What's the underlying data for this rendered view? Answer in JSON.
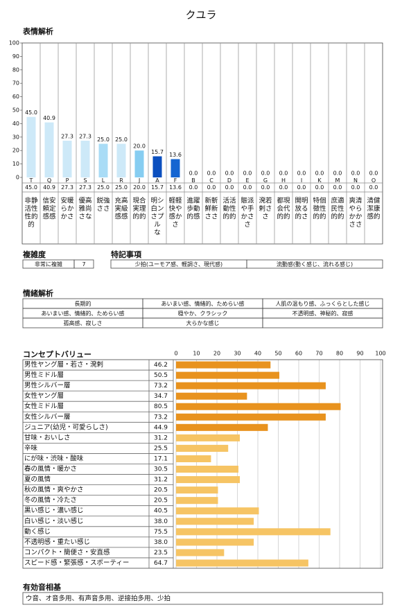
{
  "title": "クユラ",
  "chart_data": [
    {
      "type": "bar",
      "title": "表情解析",
      "categories": [
        "T",
        "Q",
        "P",
        "S",
        "L",
        "R",
        "J",
        "A",
        "F",
        "B",
        "C",
        "D",
        "E",
        "G",
        "H",
        "I",
        "K",
        "M",
        "N",
        "O"
      ],
      "category_labels": [
        [
          "非静",
          "活性",
          "性的",
          "的"
        ],
        [
          "信安",
          "頼定",
          "感感"
        ],
        [
          "安暖",
          "らか",
          "かさ"
        ],
        [
          "優高",
          "雅尚",
          "さな"
        ],
        [
          "鋭強",
          "ささ"
        ],
        [
          "充高",
          "実級",
          "感感"
        ],
        [
          "現合",
          "実理",
          "的的"
        ],
        [
          "明シ",
          "白ン",
          "さプ",
          "ル",
          "な"
        ],
        [
          "軽軽",
          "快や",
          "感か",
          "さ"
        ],
        [
          "進躍",
          "歩動",
          "的感"
        ],
        [
          "新斬",
          "鮮新",
          "ささ"
        ],
        [
          "活活",
          "動性",
          "的的"
        ],
        [
          "賑派",
          "や手",
          "かさ",
          "さ"
        ],
        [
          "溌若",
          "剌さ",
          "さ"
        ],
        [
          "都現",
          "会代",
          "的的"
        ],
        [
          "開明",
          "放る",
          "的さ"
        ],
        [
          "特個",
          "徴性",
          "的的"
        ],
        [
          "庶適",
          "民性",
          "的的"
        ],
        [
          "爽清",
          "やら",
          "かか",
          "ささ"
        ],
        [
          "清健",
          "潔康",
          "感的"
        ]
      ],
      "values": [
        45.0,
        40.9,
        27.3,
        27.3,
        25.0,
        25.0,
        20.0,
        15.7,
        13.6,
        0,
        0,
        0,
        0,
        0,
        0,
        0,
        0,
        0,
        0,
        0
      ],
      "value_labels": [
        "45.0",
        "40.9",
        "27.3",
        "27.3",
        "25.0",
        "25.0",
        "20.0",
        "15.7",
        "13.6",
        "0.0",
        "0.0",
        "0.0",
        "0.0",
        "0.0",
        "0.0",
        "0.0",
        "0.0",
        "0.0",
        "0.0",
        "0.0"
      ],
      "colors": [
        "#cde9f8",
        "#cde9f8",
        "#cde9f8",
        "#cde9f8",
        "#a9dcf6",
        "#cde9f8",
        "#86cdf1",
        "#0b4fbf",
        "#1565d1",
        "#cde9f8",
        "#cde9f8",
        "#cde9f8",
        "#cde9f8",
        "#cde9f8",
        "#cde9f8",
        "#cde9f8",
        "#cde9f8",
        "#cde9f8",
        "#cde9f8",
        "#cde9f8"
      ],
      "ylim": [
        0,
        100
      ],
      "yticks": [
        0,
        10,
        20,
        30,
        40,
        50,
        60,
        70,
        80,
        90,
        100
      ],
      "grid": false
    },
    {
      "type": "hbar",
      "title": "コンセプトバリュー",
      "categories": [
        "男性ヤング層・若さ・溌剌",
        "男性ミドル層",
        "男性シルバー層",
        "女性ヤング層",
        "女性ミドル層",
        "女性シルバー層",
        "ジュニア(幼児・可愛らしさ)",
        "甘味・おいしさ",
        "辛味",
        "にが味・渋味・酸味",
        "春の風情・暖かさ",
        "夏の風情",
        "秋の風情・爽やかさ",
        "冬の風情・冷たさ",
        "黒い感じ・濃い感じ",
        "白い感じ・淡い感じ",
        "動く感じ",
        "不透明感・重たい感じ",
        "コンパクト・簡便さ・安直感",
        "スピード感・緊張感・スポーティー"
      ],
      "values": [
        46.2,
        50.5,
        73.2,
        34.7,
        80.5,
        73.2,
        44.9,
        31.2,
        25.5,
        17.1,
        30.5,
        31.2,
        20.5,
        20.5,
        40.5,
        38.0,
        75.5,
        38.0,
        23.5,
        64.7
      ],
      "value_labels": [
        "46.2",
        "50.5",
        "73.2",
        "34.7",
        "80.5",
        "73.2",
        "44.9",
        "31.2",
        "25.5",
        "17.1",
        "30.5",
        "31.2",
        "20.5",
        "20.5",
        "40.5",
        "38.0",
        "75.5",
        "38.0",
        "23.5",
        "64.7"
      ],
      "colors": [
        "#e8921e",
        "#e8921e",
        "#e8921e",
        "#e8921e",
        "#e8921e",
        "#e8921e",
        "#e8921e",
        "#f6c464",
        "#f6c464",
        "#f6c464",
        "#f6c464",
        "#f6c464",
        "#f6c464",
        "#f6c464",
        "#f6c464",
        "#f6c464",
        "#f6c464",
        "#f6c464",
        "#f6c464",
        "#f6c464"
      ],
      "xlim": [
        0,
        100
      ],
      "xticks": [
        0,
        10,
        20,
        30,
        40,
        50,
        60,
        70,
        80,
        90,
        100
      ],
      "grid": true
    }
  ],
  "complexity": {
    "heading": "複雑度",
    "level": "非常に複雑",
    "score": 7
  },
  "notes": {
    "heading": "特記事項",
    "items": [
      "少拍(ユーモア感、軽調さ、現代感)",
      "流動感(動く感じ、流れる感じ)"
    ]
  },
  "emotion": {
    "heading": "情緒解析",
    "rows": [
      [
        "長期的",
        "あいまい感、情緒的、ためらい感",
        "人肌の温もり感、ふっくらとした感じ"
      ],
      [
        "あいまい感、情緒的、ためらい感",
        "穏やか、クラシック",
        "不透明感、神秘的、寂感"
      ],
      [
        "孤高感、寂しさ",
        "大らかな感じ"
      ]
    ]
  },
  "sound": {
    "heading": "有効音相基",
    "text": "ウ音、オ音多用、有声音多用、逆接拍多用、少拍"
  }
}
